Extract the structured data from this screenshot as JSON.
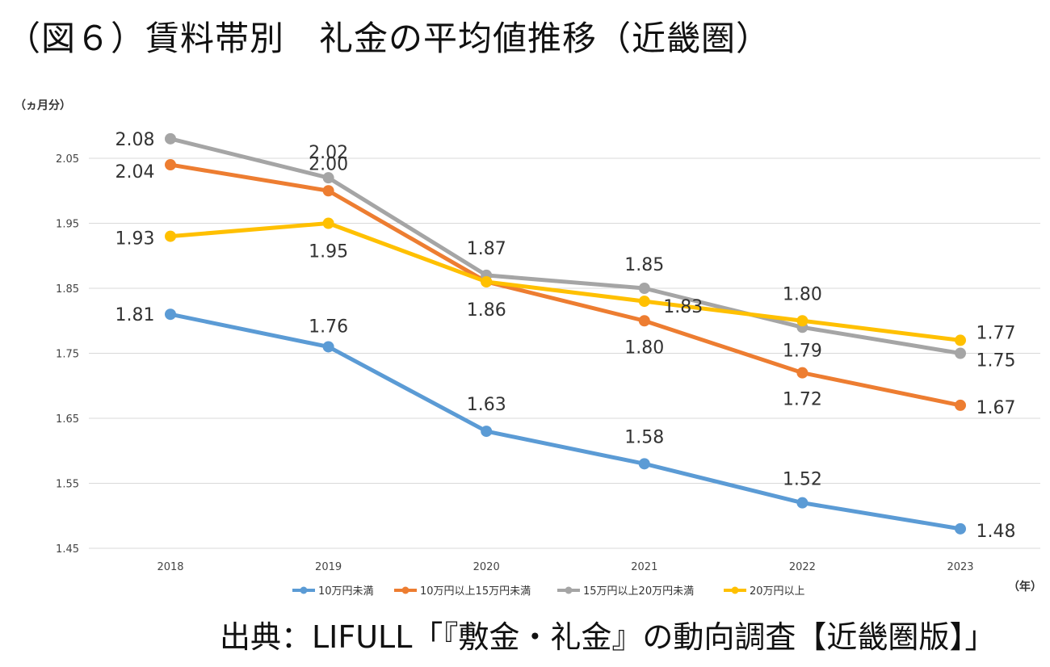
{
  "title": "（図６）賃料帯別　礼金の平均値推移（近畿圏）",
  "source": "出典：LIFULL「『敷金・礼金』の動向調査【近畿圏版】」",
  "chart_data": {
    "type": "line",
    "ylabel": "（ヵ月分）",
    "xlabel": "（年）",
    "x": [
      "2018",
      "2019",
      "2020",
      "2021",
      "2022",
      "2023"
    ],
    "ylim": [
      1.45,
      2.1
    ],
    "yticks": [
      1.45,
      1.55,
      1.65,
      1.75,
      1.85,
      1.95,
      2.05
    ],
    "grid": true,
    "legend": "bottom",
    "series": [
      {
        "name": "10万円未満",
        "color": "#5B9BD5",
        "values": [
          1.81,
          1.76,
          1.63,
          1.58,
          1.52,
          1.48
        ],
        "labels": [
          "1.81",
          "1.76",
          "1.63",
          "1.58",
          "1.52",
          "1.48"
        ]
      },
      {
        "name": "10万円以上15万円未満",
        "color": "#ED7D31",
        "values": [
          2.04,
          2.0,
          1.86,
          1.8,
          1.72,
          1.67
        ],
        "labels": [
          "2.04",
          "2.00",
          "1.86",
          "1.80",
          "1.72",
          "1.67"
        ]
      },
      {
        "name": "15万円以上20万円未満",
        "color": "#A5A5A5",
        "values": [
          2.08,
          2.02,
          1.87,
          1.85,
          1.79,
          1.75
        ],
        "labels": [
          "2.08",
          "2.02",
          "1.87",
          "1.85",
          "1.79",
          "1.75"
        ]
      },
      {
        "name": "20万円以上",
        "color": "#FFC000",
        "values": [
          1.93,
          1.95,
          1.86,
          1.83,
          1.8,
          1.77
        ],
        "labels": [
          "1.93",
          "1.95",
          "",
          "1.83",
          "1.80",
          "1.77"
        ]
      }
    ]
  }
}
